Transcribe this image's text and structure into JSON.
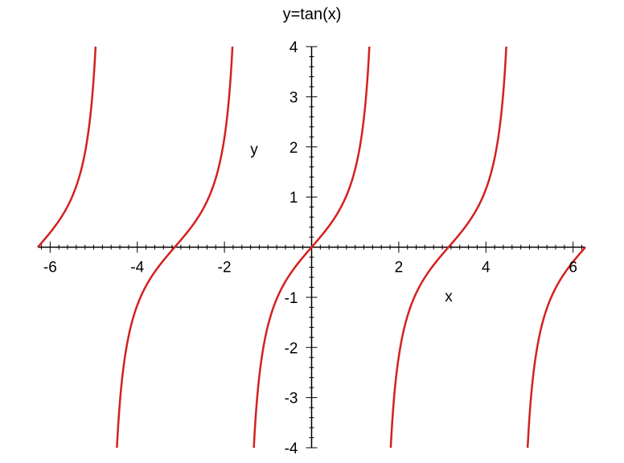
{
  "chart_data": {
    "type": "line",
    "title": "y=tan(x)",
    "xlabel": "x",
    "ylabel": "y",
    "xlim": [
      -6.283,
      6.283
    ],
    "ylim": [
      -4,
      4
    ],
    "x_ticks": [
      -6,
      -4,
      -2,
      2,
      4,
      6
    ],
    "x_tick_labels": [
      "-6",
      "-4",
      "-2",
      "2",
      "4",
      "6"
    ],
    "y_ticks": [
      -4,
      -3,
      -2,
      -1,
      1,
      2,
      3,
      4
    ],
    "y_tick_labels": [
      "-4",
      "-3",
      "-2",
      "-1",
      "1",
      "2",
      "3",
      "4"
    ],
    "grid": false,
    "function": "tan(x)",
    "series": [
      {
        "color": "#d42020"
      }
    ]
  }
}
